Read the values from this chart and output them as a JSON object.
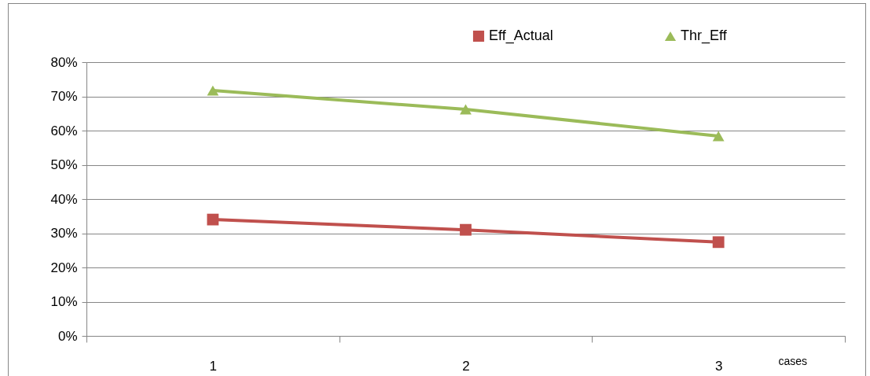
{
  "chart_data": {
    "type": "line",
    "xlabel": "cases",
    "categories": [
      "1",
      "2",
      "3"
    ],
    "series": [
      {
        "name": "Eff_Actual",
        "color": "#c0504d",
        "marker": "square",
        "values": [
          34,
          31,
          27.4
        ]
      },
      {
        "name": "Thr_Eff",
        "color": "#9bbb59",
        "marker": "triangle",
        "values": [
          71.7,
          66.2,
          58.4
        ]
      }
    ],
    "ylim": [
      0,
      80
    ],
    "yticks": [
      {
        "value": 0,
        "label": "0%"
      },
      {
        "value": 10,
        "label": "10%"
      },
      {
        "value": 20,
        "label": "20%"
      },
      {
        "value": 30,
        "label": "30%"
      },
      {
        "value": 40,
        "label": "40%"
      },
      {
        "value": 50,
        "label": "50%"
      },
      {
        "value": 60,
        "label": "60%"
      },
      {
        "value": 70,
        "label": "70%"
      },
      {
        "value": 80,
        "label": "80%"
      }
    ],
    "grid": "y",
    "legend": "top right",
    "line_style": "solid"
  }
}
